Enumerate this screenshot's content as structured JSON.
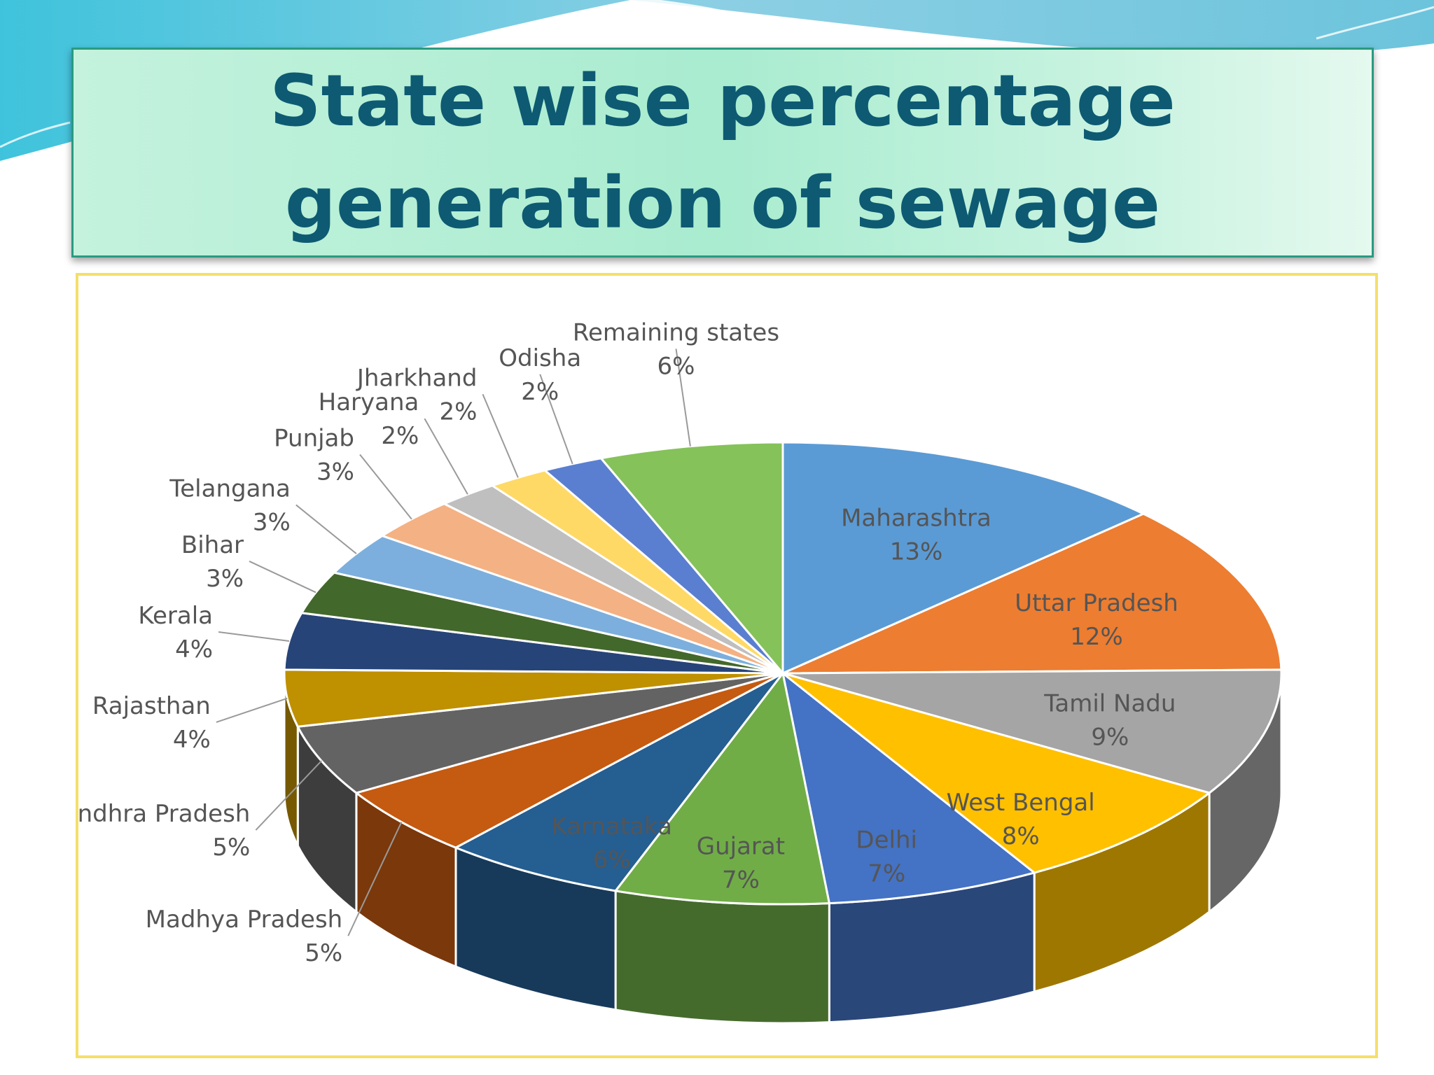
{
  "title": "State wise percentage generation of sewage",
  "chart_data": {
    "type": "pie",
    "style": "3d",
    "start_angle_deg": -90,
    "direction": "clockwise",
    "slices": [
      {
        "label": "Maharashtra",
        "value": 13,
        "value_text": "13%",
        "color": "#5b9bd5",
        "label_pos": "inside"
      },
      {
        "label": "Uttar Pradesh",
        "value": 12,
        "value_text": "12%",
        "color": "#ed7d31",
        "label_pos": "inside"
      },
      {
        "label": "Tamil Nadu",
        "value": 9,
        "value_text": "9%",
        "color": "#a5a5a5",
        "label_pos": "inside"
      },
      {
        "label": "West Bengal",
        "value": 8,
        "value_text": "8%",
        "color": "#ffc000",
        "label_pos": "inside"
      },
      {
        "label": "Delhi",
        "value": 7,
        "value_text": "7%",
        "color": "#4472c4",
        "label_pos": "inside"
      },
      {
        "label": "Gujarat",
        "value": 7,
        "value_text": "7%",
        "color": "#70ad47",
        "label_pos": "inside"
      },
      {
        "label": "Karnataka",
        "value": 6,
        "value_text": "6%",
        "color": "#255e91",
        "label_pos": "inside"
      },
      {
        "label": "Madhya Pradesh",
        "value": 5,
        "value_text": "5%",
        "color": "#c55a11",
        "label_pos": "outside"
      },
      {
        "label": "Andhra Pradesh",
        "value": 5,
        "value_text": "5%",
        "color": "#636363",
        "label_pos": "outside"
      },
      {
        "label": "Rajasthan",
        "value": 4,
        "value_text": "4%",
        "color": "#bf9000",
        "label_pos": "outside"
      },
      {
        "label": "Kerala",
        "value": 4,
        "value_text": "4%",
        "color": "#264478",
        "label_pos": "outside"
      },
      {
        "label": "Bihar",
        "value": 3,
        "value_text": "3%",
        "color": "#43682b",
        "label_pos": "outside"
      },
      {
        "label": "Telangana",
        "value": 3,
        "value_text": "3%",
        "color": "#7cafdd",
        "label_pos": "outside"
      },
      {
        "label": "Punjab",
        "value": 3,
        "value_text": "3%",
        "color": "#f4b183",
        "label_pos": "outside"
      },
      {
        "label": "Haryana",
        "value": 2,
        "value_text": "2%",
        "color": "#bfbfbf",
        "label_pos": "outside"
      },
      {
        "label": "Jharkhand",
        "value": 2,
        "value_text": "2%",
        "color": "#ffd966",
        "label_pos": "outside"
      },
      {
        "label": "Odisha",
        "value": 2,
        "value_text": "2%",
        "color": "#5a7fd0",
        "label_pos": "outside"
      },
      {
        "label": "Remaining states",
        "value": 6,
        "value_text": "6%",
        "color": "#85c25a",
        "label_pos": "outside"
      }
    ]
  }
}
